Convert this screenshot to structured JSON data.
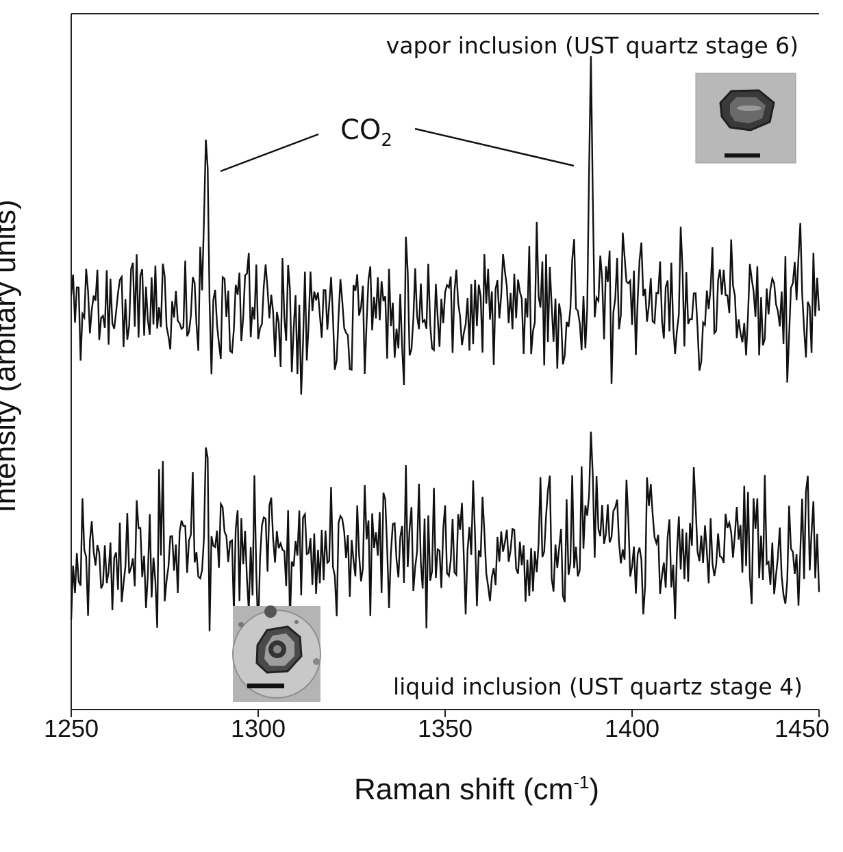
{
  "chart_data": {
    "type": "line",
    "xlabel": "Raman shift (cm",
    "xlabel_sup": "-1",
    "xlabel_tail": ")",
    "ylabel": "Intensity (arbitary units)",
    "xlim": [
      1250,
      1450
    ],
    "x_ticks": [
      "1250",
      "1300",
      "1350",
      "1400",
      "1450"
    ],
    "y_ticks": [],
    "grid": false,
    "annotations": {
      "peak_label": "CO",
      "peak_label_sub": "2",
      "peak_positions": [
        1286,
        1389
      ]
    },
    "series": [
      {
        "name": "vapor inclusion (UST quartz stage 6)",
        "offset": 1.0,
        "peaks": [
          {
            "x": 1286,
            "height": 0.55,
            "width": 0.7
          },
          {
            "x": 1389,
            "height": 0.92,
            "width": 0.6
          }
        ],
        "noise": 0.13,
        "seed": 11
      },
      {
        "name": "liquid inclusion (UST quartz stage 4)",
        "offset": 0.0,
        "peaks": [
          {
            "x": 1286,
            "height": 0.52,
            "width": 0.6
          },
          {
            "x": 1389,
            "height": 0.56,
            "width": 0.6
          }
        ],
        "noise": 0.14,
        "seed": 27
      }
    ],
    "insets": [
      {
        "name": "vapor-inclusion-micrograph",
        "placement": "top-right"
      },
      {
        "name": "liquid-inclusion-micrograph",
        "placement": "bottom-left"
      }
    ]
  }
}
